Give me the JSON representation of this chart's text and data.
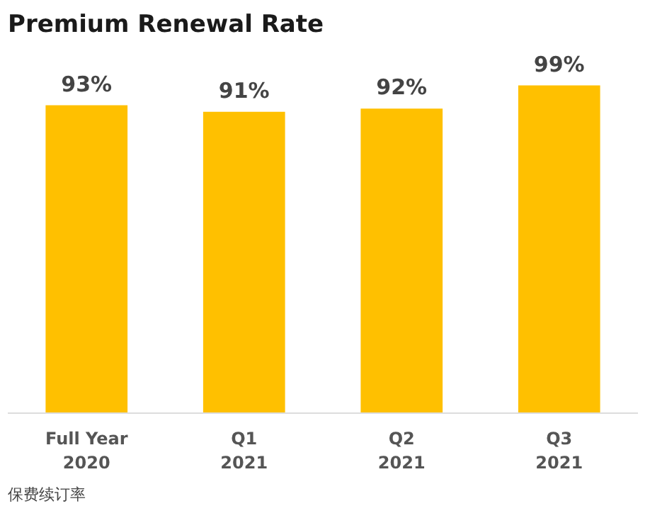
{
  "chart_data": {
    "type": "bar",
    "title": "Premium Renewal Rate",
    "categories": [
      "Full Year\n2020",
      "Q1\n2021",
      "Q2\n2021",
      "Q3\n2021"
    ],
    "values": [
      93,
      91,
      92,
      99
    ],
    "value_labels": [
      "93%",
      "91%",
      "92%",
      "99%"
    ],
    "color": "#ffc000",
    "grid": false,
    "annotations": [
      "保费续订率"
    ]
  }
}
